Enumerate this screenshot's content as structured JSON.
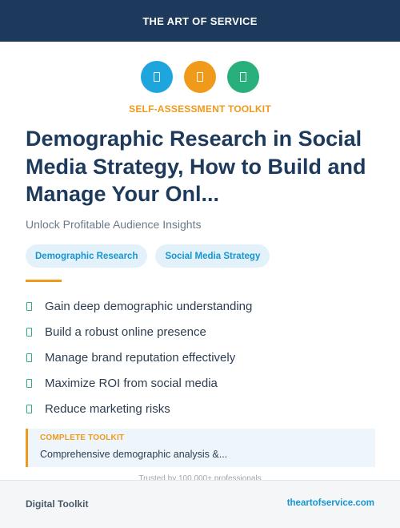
{
  "header": {
    "brand": "THE ART OF SERVICE"
  },
  "icons": [
    {
      "name": "document-icon",
      "color": "#1ea5dd"
    },
    {
      "name": "document-icon",
      "color": "#f09a1b"
    },
    {
      "name": "document-icon",
      "color": "#27b07a"
    }
  ],
  "kicker": "SELF-ASSESSMENT TOOLKIT",
  "title": "Demographic Research in Social Media Strategy, How to Build and Manage Your Onl...",
  "subtitle": "Unlock Profitable Audience Insights",
  "tags": [
    "Demographic Research",
    "Social Media Strategy"
  ],
  "benefits": [
    "Gain deep demographic understanding",
    "Build a robust online presence",
    "Manage brand reputation effectively",
    "Maximize ROI from social media",
    "Reduce marketing risks"
  ],
  "callout": {
    "label": "COMPLETE TOOLKIT",
    "text": "Comprehensive demographic analysis &..."
  },
  "trusted": "Trusted by 100,000+ professionals",
  "footer": {
    "left": "Digital Toolkit",
    "right": "theartofservice.com"
  },
  "colors": {
    "navy": "#1d3a5c",
    "orange": "#f09a1b",
    "blue": "#1ea5dd",
    "green": "#27b07a"
  }
}
